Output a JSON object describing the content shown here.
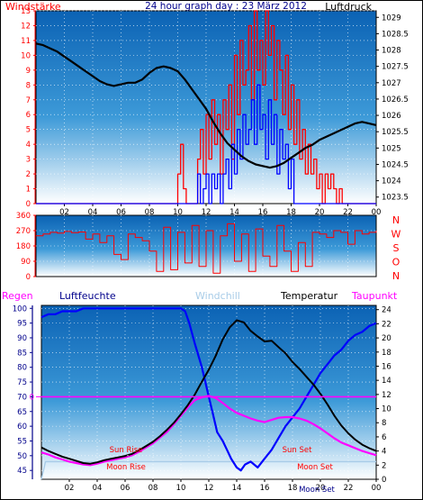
{
  "chart_data": [
    {
      "type": "line",
      "title": "24 hour graph day : 23 März 2012",
      "left_label": "Windstärke",
      "right_label": "Luftdruck",
      "x_ticks": [
        "02",
        "04",
        "06",
        "08",
        "10",
        "12",
        "14",
        "16",
        "18",
        "20",
        "22",
        "00"
      ],
      "x_range": [
        0,
        24
      ],
      "wind_y_ticks": [
        "0",
        "1",
        "2",
        "3",
        "4",
        "5",
        "6",
        "7",
        "8",
        "9",
        "10",
        "11",
        "12",
        "13"
      ],
      "wind_ylim": [
        0,
        13
      ],
      "pressure_y_ticks": [
        "1023.5",
        "1024",
        "1024.5",
        "1025",
        "1025.5",
        "1026",
        "1026.5",
        "1027",
        "1027.5",
        "1028",
        "1028.5",
        "1029"
      ],
      "pressure_ylim": [
        1023.3,
        1029.2
      ],
      "pressure": {
        "x": [
          0,
          0.5,
          1,
          1.5,
          2,
          2.5,
          3,
          3.5,
          4,
          4.5,
          5,
          5.5,
          6,
          6.5,
          7,
          7.5,
          8,
          8.5,
          9,
          9.5,
          10,
          10.5,
          11,
          11.5,
          12,
          12.5,
          13,
          13.5,
          14,
          14.5,
          15,
          15.5,
          16,
          16.5,
          17,
          17.5,
          18,
          18.5,
          19,
          19.5,
          20,
          20.5,
          21,
          21.5,
          22,
          22.5,
          23,
          23.5,
          24
        ],
        "y": [
          1028.2,
          1028.15,
          1028.05,
          1027.95,
          1027.8,
          1027.65,
          1027.5,
          1027.35,
          1027.2,
          1027.05,
          1026.95,
          1026.9,
          1026.95,
          1027.0,
          1027.0,
          1027.1,
          1027.3,
          1027.45,
          1027.5,
          1027.45,
          1027.35,
          1027.1,
          1026.8,
          1026.5,
          1026.2,
          1025.8,
          1025.45,
          1025.15,
          1024.95,
          1024.75,
          1024.6,
          1024.5,
          1024.45,
          1024.4,
          1024.45,
          1024.55,
          1024.7,
          1024.85,
          1025.0,
          1025.1,
          1025.25,
          1025.35,
          1025.45,
          1025.55,
          1025.65,
          1025.75,
          1025.8,
          1025.75,
          1025.7
        ]
      },
      "wind_gust": {
        "x": [
          0,
          9.8,
          10.0,
          10.2,
          10.4,
          10.6,
          11.0,
          11.4,
          11.6,
          11.8,
          12.0,
          12.2,
          12.4,
          12.6,
          12.8,
          13.0,
          13.2,
          13.4,
          13.6,
          13.8,
          14.0,
          14.2,
          14.4,
          14.6,
          14.8,
          15.0,
          15.2,
          15.4,
          15.6,
          15.8,
          16.0,
          16.2,
          16.4,
          16.6,
          16.8,
          17.0,
          17.2,
          17.4,
          17.6,
          17.8,
          18.0,
          18.2,
          18.4,
          18.6,
          18.8,
          19.0,
          19.2,
          19.4,
          19.6,
          19.8,
          20.0,
          20.2,
          20.4,
          20.6,
          20.8,
          21.0,
          21.2,
          21.4,
          21.6,
          22.0,
          24
        ],
        "y": [
          0,
          0,
          2,
          4,
          1,
          0,
          0,
          3,
          5,
          2,
          6,
          3,
          7,
          4,
          6,
          2,
          7,
          5,
          8,
          3,
          10,
          6,
          11,
          8,
          9,
          12,
          7,
          13,
          9,
          11,
          8,
          13,
          10,
          12,
          7,
          11,
          9,
          6,
          10,
          5,
          8,
          4,
          7,
          3,
          5,
          2,
          4,
          2,
          3,
          1,
          2,
          0,
          2,
          1,
          2,
          1,
          0,
          1,
          0,
          0,
          0
        ]
      },
      "wind_avg": {
        "x": [
          0,
          11.2,
          11.4,
          11.6,
          11.8,
          12.0,
          12.2,
          12.4,
          12.6,
          12.8,
          13.0,
          13.2,
          13.4,
          13.6,
          13.8,
          14.0,
          14.2,
          14.4,
          14.6,
          14.8,
          15.0,
          15.2,
          15.4,
          15.6,
          15.8,
          16.0,
          16.2,
          16.4,
          16.6,
          16.8,
          17.0,
          17.2,
          17.4,
          17.6,
          17.8,
          18.0,
          18.2,
          18.4,
          24
        ],
        "y": [
          0,
          0,
          2,
          0,
          1,
          2,
          0,
          2,
          1,
          2,
          0,
          2,
          3,
          1,
          4,
          2,
          5,
          3,
          6,
          4,
          5,
          7,
          4,
          8,
          5,
          6,
          3,
          7,
          4,
          6,
          2,
          5,
          3,
          4,
          1,
          3,
          0,
          0,
          0
        ]
      },
      "wind_direction": {
        "y_ticks": [
          "0",
          "90",
          "180",
          "270",
          "360"
        ],
        "ylim": [
          0,
          360
        ],
        "compass": [
          "N",
          "W",
          "S",
          "O",
          "N"
        ],
        "x": [
          0,
          0.5,
          1,
          1.5,
          2,
          2.5,
          3,
          3.5,
          4,
          4.5,
          5,
          5.5,
          6,
          6.5,
          7,
          7.5,
          8,
          8.5,
          9,
          9.5,
          10,
          10.5,
          11,
          11.5,
          12,
          12.5,
          13,
          13.5,
          14,
          14.5,
          15,
          15.5,
          16,
          16.5,
          17,
          17.5,
          18,
          18.5,
          19,
          19.5,
          20,
          20.5,
          21,
          21.5,
          22,
          22.5,
          23,
          23.5,
          24
        ],
        "y": [
          240,
          250,
          260,
          255,
          265,
          258,
          262,
          220,
          250,
          200,
          240,
          130,
          100,
          250,
          230,
          210,
          150,
          30,
          290,
          40,
          260,
          80,
          300,
          60,
          270,
          20,
          240,
          310,
          90,
          250,
          30,
          280,
          120,
          60,
          300,
          150,
          30,
          200,
          60,
          260,
          250,
          230,
          270,
          260,
          190,
          270,
          250,
          260,
          270
        ]
      }
    },
    {
      "type": "line",
      "labels": {
        "rain": "Regen",
        "humidity": "Luftfeuchte",
        "windchill": "Windchill",
        "temperature": "Temperatur",
        "dewpoint": "Taupunkt"
      },
      "x_ticks": [
        "02",
        "04",
        "06",
        "08",
        "10",
        "12",
        "14",
        "16",
        "18",
        "20",
        "22",
        "00"
      ],
      "x_range": [
        0,
        24
      ],
      "humidity_y_ticks": [
        "45",
        "50",
        "55",
        "60",
        "65",
        "70",
        "75",
        "80",
        "85",
        "90",
        "95",
        "100"
      ],
      "humidity_ylim": [
        42,
        101
      ],
      "rain_tick": "0",
      "temp_y_ticks": [
        "0",
        "2",
        "4",
        "6",
        "8",
        "10",
        "12",
        "14",
        "16",
        "18",
        "20",
        "22",
        "24"
      ],
      "temp_ylim": [
        0,
        24.6
      ],
      "annotations": {
        "sun_rise": "Sun Rise",
        "sun_set": "Sun Set",
        "moon_rise": "Moon Rise",
        "moon_set": "Moon Set",
        "axis_moon_set": "Moon Set"
      },
      "humidity": {
        "x": [
          0,
          0.5,
          1,
          1.5,
          2,
          2.5,
          3,
          4,
          5,
          6,
          7,
          8,
          9,
          10,
          10.3,
          10.6,
          11,
          11.5,
          12,
          12.3,
          12.6,
          13,
          13.3,
          13.6,
          14,
          14.3,
          14.6,
          15,
          15.5,
          16,
          16.5,
          17,
          17.5,
          18,
          18.5,
          19,
          19.5,
          20,
          20.5,
          21,
          21.5,
          22,
          22.5,
          23,
          23.5,
          24
        ],
        "y": [
          97,
          98,
          98,
          99,
          99,
          99,
          100,
          100,
          100,
          100,
          100,
          100,
          100,
          100,
          99,
          95,
          88,
          80,
          70,
          64,
          58,
          55,
          52,
          49,
          46,
          45,
          47,
          48,
          46,
          49,
          52,
          56,
          60,
          63,
          66,
          70,
          74,
          78,
          81,
          84,
          86,
          89,
          91,
          92,
          94,
          95
        ]
      },
      "temperature": {
        "x": [
          0,
          0.5,
          1,
          1.5,
          2,
          2.5,
          3,
          3.5,
          4,
          4.5,
          5,
          5.5,
          6,
          6.5,
          7,
          7.5,
          8,
          8.5,
          9,
          9.5,
          10,
          10.5,
          11,
          11.5,
          12,
          12.5,
          13,
          13.5,
          14,
          14.5,
          15,
          15.5,
          16,
          16.5,
          17,
          17.5,
          18,
          18.5,
          19,
          19.5,
          20,
          20.5,
          21,
          21.5,
          22,
          22.5,
          23,
          23.5,
          24
        ],
        "y": [
          4.5,
          4.0,
          3.6,
          3.2,
          2.9,
          2.6,
          2.3,
          2.2,
          2.4,
          2.7,
          2.9,
          3.1,
          3.3,
          3.6,
          4.1,
          4.7,
          5.3,
          6.1,
          7.0,
          8.0,
          9.2,
          10.5,
          12.0,
          13.8,
          15.5,
          17.5,
          19.8,
          21.5,
          22.5,
          22.2,
          21.0,
          20.2,
          19.5,
          19.6,
          18.7,
          17.8,
          16.6,
          15.6,
          14.5,
          13.4,
          12.1,
          10.6,
          9.0,
          7.6,
          6.5,
          5.6,
          4.9,
          4.4,
          4.0
        ]
      },
      "dewpoint": {
        "x": [
          0,
          0.5,
          1,
          1.5,
          2,
          2.5,
          3,
          3.5,
          4,
          4.5,
          5,
          5.5,
          6,
          6.5,
          7,
          7.5,
          8,
          8.5,
          9,
          9.5,
          10,
          10.5,
          11,
          11.5,
          12,
          12.5,
          13,
          13.5,
          14,
          14.5,
          15,
          15.5,
          16,
          16.5,
          17,
          17.5,
          18,
          18.5,
          19,
          19.5,
          20,
          20.5,
          21,
          21.5,
          22,
          22.5,
          23,
          23.5,
          24
        ],
        "y": [
          3.8,
          3.5,
          3.1,
          2.8,
          2.5,
          2.3,
          2.1,
          2.0,
          2.2,
          2.5,
          2.7,
          2.9,
          3.1,
          3.4,
          3.9,
          4.5,
          5.1,
          5.9,
          6.7,
          7.8,
          9.0,
          10.2,
          11.2,
          11.6,
          11.8,
          11.5,
          10.8,
          10.0,
          9.4,
          9.0,
          8.6,
          8.3,
          8.1,
          8.4,
          8.7,
          8.8,
          8.8,
          8.6,
          8.3,
          7.8,
          7.2,
          6.5,
          5.8,
          5.2,
          4.8,
          4.4,
          4.0,
          3.7,
          3.4
        ]
      },
      "windchill": {
        "x": [
          0,
          0.3,
          0.5,
          24
        ],
        "y": [
          0,
          2.5,
          2.5,
          2.5
        ]
      },
      "rain": {
        "x": [
          0,
          24
        ],
        "y": [
          0,
          0
        ]
      }
    }
  ]
}
